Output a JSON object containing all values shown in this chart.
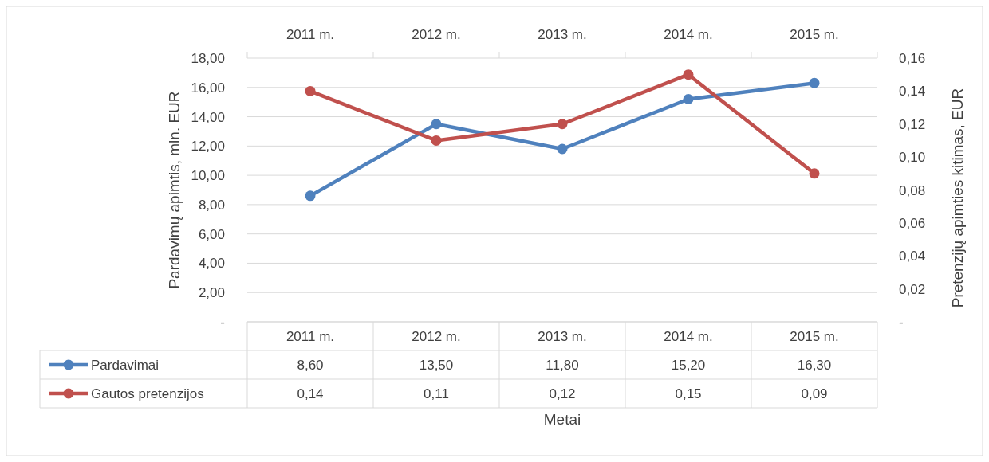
{
  "chart_data": {
    "type": "line",
    "categories": [
      "2011 m.",
      "2012 m.",
      "2013 m.",
      "2014 m.",
      "2015 m."
    ],
    "series": [
      {
        "name": "Pardavimai",
        "color": "#4f81bd",
        "values": [
          8.6,
          13.5,
          11.8,
          15.2,
          16.3
        ],
        "value_labels": [
          "8,60",
          "13,50",
          "11,80",
          "15,20",
          "16,30"
        ]
      },
      {
        "name": "Gautos pretenzijos",
        "color": "#c0504d",
        "values": [
          0.14,
          0.11,
          0.12,
          0.15,
          0.09
        ],
        "value_labels": [
          "0,14",
          "0,11",
          "0,12",
          "0,15",
          "0,09"
        ],
        "axis": "y2"
      }
    ],
    "ylim": [
      0,
      18
    ],
    "yticks": [
      {
        "value": 0,
        "label": "-"
      },
      {
        "value": 2,
        "label": "2,00"
      },
      {
        "value": 4,
        "label": "4,00"
      },
      {
        "value": 6,
        "label": "6,00"
      },
      {
        "value": 8,
        "label": "8,00"
      },
      {
        "value": 10,
        "label": "10,00"
      },
      {
        "value": 12,
        "label": "12,00"
      },
      {
        "value": 14,
        "label": "14,00"
      },
      {
        "value": 16,
        "label": "16,00"
      },
      {
        "value": 18,
        "label": "18,00"
      }
    ],
    "y2lim": [
      0,
      0.16
    ],
    "y2ticks": [
      {
        "value": 0,
        "label": "-"
      },
      {
        "value": 0.02,
        "label": "0,02"
      },
      {
        "value": 0.04,
        "label": "0,04"
      },
      {
        "value": 0.06,
        "label": "0,06"
      },
      {
        "value": 0.08,
        "label": "0,08"
      },
      {
        "value": 0.1,
        "label": "0,10"
      },
      {
        "value": 0.12,
        "label": "0,12"
      },
      {
        "value": 0.14,
        "label": "0,14"
      },
      {
        "value": 0.16,
        "label": "0,16"
      }
    ],
    "xlabel": "Metai",
    "ylabel": "Pardavimų apimtis, mln. EUR",
    "y2label": "Pretenzijų apimties kitimas, EUR",
    "grid": "y",
    "legend": "bottom",
    "marker": "circle",
    "line_style": "solid"
  }
}
